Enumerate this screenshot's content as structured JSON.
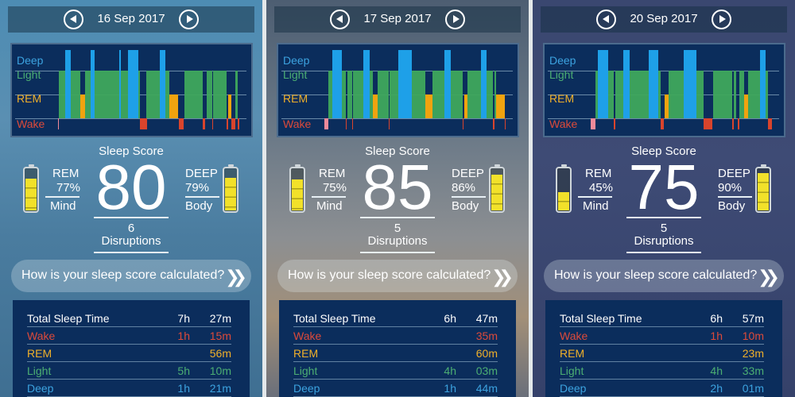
{
  "colors": {
    "deep": "#1ea0e8",
    "light": "#3fa85c",
    "rem": "#f0a30f",
    "wake": "#d9442c",
    "wake_start": "#f08a9a",
    "row_deep": "#3ca3e0",
    "row_light": "#4cae73",
    "row_rem": "#f0b02a",
    "row_wake": "#dd4a3a",
    "white": "#ffffff"
  },
  "stage_labels": {
    "deep": "Deep",
    "light": "Light",
    "rem": "REM",
    "wake": "Wake"
  },
  "score_label": "Sleep Score",
  "button_label": "How is your sleep score calculated?",
  "chevron_icon": "double-chevron-right",
  "panels": [
    {
      "date": "16 Sep 2017",
      "score": "80",
      "disruptions": "6",
      "disruptions_label": "Disruptions",
      "mind": {
        "label": "REM",
        "pct": "77%",
        "sub": "Mind",
        "fill": 77
      },
      "body": {
        "label": "DEEP",
        "pct": "79%",
        "sub": "Body",
        "fill": 79
      },
      "table": [
        [
          "Total Sleep Time",
          "7h",
          "27m"
        ],
        [
          "Wake",
          "1h",
          "15m"
        ],
        [
          "REM",
          "",
          "56m"
        ],
        [
          "Light",
          "5h",
          "10m"
        ],
        [
          "Deep",
          "1h",
          "21m"
        ]
      ],
      "chart_data": {
        "type": "hypnogram",
        "x_unit": "percent of night",
        "categories": [
          "Deep",
          "Light",
          "REM",
          "Wake"
        ],
        "segments": [
          [
            "wake0",
            0,
            0.6
          ],
          [
            "light",
            0.6,
            12.4
          ],
          [
            "rem",
            12.4,
            15.1
          ],
          [
            "light",
            15.1,
            45.3
          ],
          [
            "wake",
            45.3,
            49.3
          ],
          [
            "light",
            48.9,
            61.3
          ],
          [
            "rem",
            61.3,
            66.2
          ],
          [
            "wake",
            66.7,
            69.3
          ],
          [
            "light",
            69.8,
            80
          ],
          [
            "wake",
            80,
            81.3
          ],
          [
            "light",
            82.2,
            84.9
          ],
          [
            "wake",
            84.9,
            85.4
          ],
          [
            "light",
            85.4,
            92.9
          ],
          [
            "wake",
            92.9,
            93.8
          ],
          [
            "rem",
            93.8,
            95.6
          ],
          [
            "wake",
            95.6,
            97.8
          ],
          [
            "light",
            97.8,
            99.3
          ],
          [
            "wake",
            99.3,
            100
          ],
          [
            "deep",
            4,
            7.1
          ],
          [
            "deep",
            17.8,
            20
          ],
          [
            "deep",
            33.8,
            34.7
          ],
          [
            "deep",
            38.7,
            44.4
          ],
          [
            "deep",
            56,
            59.1
          ]
        ]
      }
    },
    {
      "date": "17 Sep 2017",
      "score": "85",
      "disruptions": "5",
      "disruptions_label": "Disruptions",
      "mind": {
        "label": "REM",
        "pct": "75%",
        "sub": "Mind",
        "fill": 75
      },
      "body": {
        "label": "DEEP",
        "pct": "86%",
        "sub": "Body",
        "fill": 86
      },
      "table": [
        [
          "Total Sleep Time",
          "6h",
          "47m"
        ],
        [
          "Wake",
          "",
          "35m"
        ],
        [
          "REM",
          "",
          "60m"
        ],
        [
          "Light",
          "4h",
          "03m"
        ],
        [
          "Deep",
          "1h",
          "44m"
        ]
      ],
      "chart_data": {
        "type": "hypnogram",
        "x_unit": "percent of night",
        "categories": [
          "Deep",
          "Light",
          "REM",
          "Wake"
        ],
        "segments": [
          [
            "wake0",
            0,
            2.2
          ],
          [
            "light",
            2.2,
            11.8
          ],
          [
            "wake",
            11.8,
            12.4
          ],
          [
            "light",
            12.7,
            15.4
          ],
          [
            "wake",
            15.4,
            15.9
          ],
          [
            "light",
            15.9,
            26.8
          ],
          [
            "rem",
            26.8,
            29.4
          ],
          [
            "light",
            29.4,
            35.5
          ],
          [
            "wake",
            35.5,
            36
          ],
          [
            "light",
            36,
            55.7
          ],
          [
            "rem",
            55.7,
            59.6
          ],
          [
            "light",
            59.6,
            76.3
          ],
          [
            "wake",
            76.3,
            76.9
          ],
          [
            "rem",
            77.2,
            78.9
          ],
          [
            "light",
            78.9,
            93
          ],
          [
            "wake",
            93,
            93.9
          ],
          [
            "light",
            93.9,
            94.7
          ],
          [
            "rem",
            94.7,
            99.5
          ],
          [
            "wake",
            99.5,
            100
          ],
          [
            "deep",
            4.4,
            9.6
          ],
          [
            "deep",
            21.5,
            25
          ],
          [
            "deep",
            40.8,
            48.2
          ],
          [
            "deep",
            66.2,
            69.7
          ],
          [
            "deep",
            86.4,
            89.5
          ]
        ]
      }
    },
    {
      "date": "20 Sep 2017",
      "score": "75",
      "disruptions": "5",
      "disruptions_label": "Disruptions",
      "mind": {
        "label": "REM",
        "pct": "45%",
        "sub": "Mind",
        "fill": 45
      },
      "body": {
        "label": "DEEP",
        "pct": "90%",
        "sub": "Body",
        "fill": 90
      },
      "table": [
        [
          "Total Sleep Time",
          "6h",
          "57m"
        ],
        [
          "Wake",
          "1h",
          "10m"
        ],
        [
          "REM",
          "",
          "23m"
        ],
        [
          "Light",
          "4h",
          "33m"
        ],
        [
          "Deep",
          "2h",
          "01m"
        ]
      ],
      "chart_data": {
        "type": "hypnogram",
        "x_unit": "percent of night",
        "categories": [
          "Deep",
          "Light",
          "REM",
          "Wake"
        ],
        "segments": [
          [
            "wake0",
            0,
            2.6
          ],
          [
            "light",
            2.6,
            12.7
          ],
          [
            "wake",
            12.7,
            13.5
          ],
          [
            "light",
            13.5,
            38.4
          ],
          [
            "wake",
            38.4,
            40.2
          ],
          [
            "rem",
            40.6,
            43.2
          ],
          [
            "light",
            43.2,
            62.4
          ],
          [
            "wake",
            62.4,
            67.2
          ],
          [
            "light",
            67.7,
            78.2
          ],
          [
            "wake",
            78.2,
            79
          ],
          [
            "light",
            79,
            80.3
          ],
          [
            "wake",
            81.2,
            82
          ],
          [
            "light",
            82,
            84.7
          ],
          [
            "rem",
            84.7,
            86.9
          ],
          [
            "light",
            86.9,
            97.8
          ],
          [
            "wake",
            97.8,
            100
          ],
          [
            "deep",
            3.9,
            9.6
          ],
          [
            "deep",
            17.9,
            21.4
          ],
          [
            "deep",
            31.9,
            37.1
          ],
          [
            "deep",
            51.1,
            58.5
          ],
          [
            "deep",
            93.4,
            96.5
          ]
        ]
      }
    }
  ]
}
